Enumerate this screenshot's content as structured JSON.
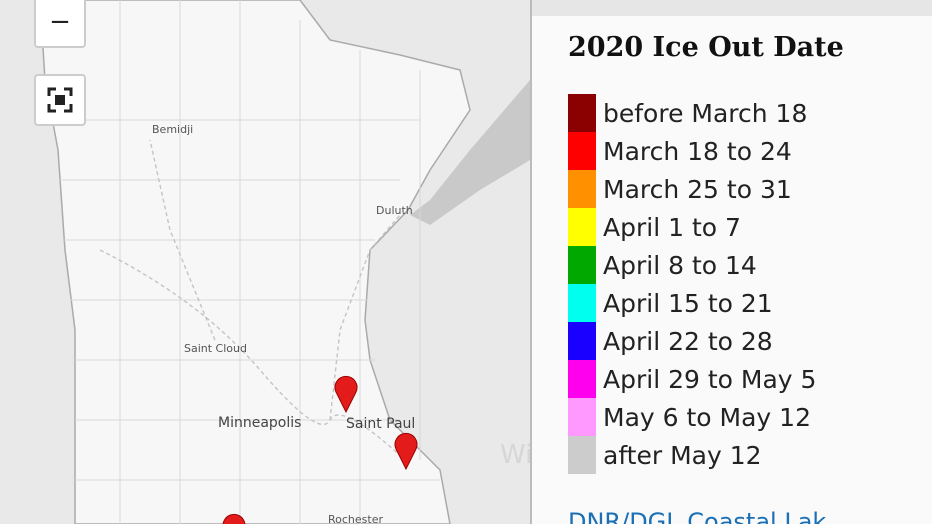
{
  "map": {
    "zoom_out": "−",
    "cities": [
      "Bemidji",
      "Duluth",
      "Saint Cloud",
      "Minneapolis",
      "Saint Paul",
      "Rochester",
      "Wis"
    ]
  },
  "legend": {
    "title": "2020 Ice Out Date",
    "items": [
      {
        "label": "before March 18",
        "color": "#8b0000"
      },
      {
        "label": "March 18 to 24",
        "color": "#ff0000"
      },
      {
        "label": "March 25 to 31",
        "color": "#ff9100"
      },
      {
        "label": "April 1 to 7",
        "color": "#ffff00"
      },
      {
        "label": "April 8 to 14",
        "color": "#00a800"
      },
      {
        "label": "April 15 to 21",
        "color": "#00ffee"
      },
      {
        "label": "April 22 to 28",
        "color": "#1a00ff"
      },
      {
        "label": "April 29 to May 5",
        "color": "#ff00ee"
      },
      {
        "label": "May 6 to May 12",
        "color": "#ff99ff"
      },
      {
        "label": "after May 12",
        "color": "#cccccc"
      }
    ],
    "source": "DNR/DGL Coastal Lak"
  }
}
